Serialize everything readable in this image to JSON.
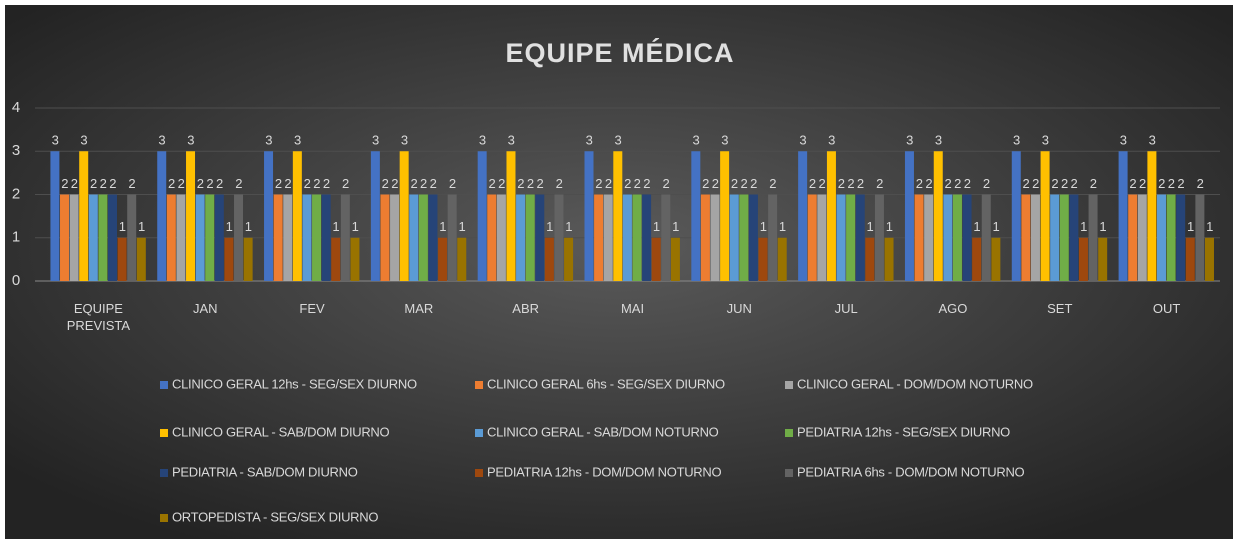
{
  "chart_data": {
    "type": "bar",
    "title": "EQUIPE MÉDICA",
    "categories": [
      "EQUIPE PREVISTA",
      "JAN",
      "FEV",
      "MAR",
      "ABR",
      "MAI",
      "JUN",
      "JUL",
      "AGO",
      "SET",
      "OUT"
    ],
    "series": [
      {
        "name": "CLINICO GERAL  12hs - SEG/SEX DIURNO",
        "color": "#4472c4",
        "values": [
          3,
          3,
          3,
          3,
          3,
          3,
          3,
          3,
          3,
          3,
          3
        ]
      },
      {
        "name": "CLINICO GERAL  6hs - SEG/SEX DIURNO",
        "color": "#ed7d31",
        "values": [
          2,
          2,
          2,
          2,
          2,
          2,
          2,
          2,
          2,
          2,
          2
        ]
      },
      {
        "name": "CLINICO GERAL - DOM/DOM NOTURNO",
        "color": "#a5a5a5",
        "values": [
          2,
          2,
          2,
          2,
          2,
          2,
          2,
          2,
          2,
          2,
          2
        ]
      },
      {
        "name": "CLINICO GERAL - SAB/DOM DIURNO",
        "color": "#ffc000",
        "values": [
          3,
          3,
          3,
          3,
          3,
          3,
          3,
          3,
          3,
          3,
          3
        ]
      },
      {
        "name": "CLINICO GERAL - SAB/DOM NOTURNO",
        "color": "#5b9bd5",
        "values": [
          2,
          2,
          2,
          2,
          2,
          2,
          2,
          2,
          2,
          2,
          2
        ]
      },
      {
        "name": "PEDIATRIA 12hs - SEG/SEX DIURNO",
        "color": "#70ad47",
        "values": [
          2,
          2,
          2,
          2,
          2,
          2,
          2,
          2,
          2,
          2,
          2
        ]
      },
      {
        "name": "PEDIATRIA - SAB/DOM DIURNO",
        "color": "#264478",
        "values": [
          2,
          2,
          2,
          2,
          2,
          2,
          2,
          2,
          2,
          2,
          2
        ]
      },
      {
        "name": "PEDIATRIA 12hs  - DOM/DOM NOTURNO",
        "color": "#9e480e",
        "values": [
          1,
          1,
          1,
          1,
          1,
          1,
          1,
          1,
          1,
          1,
          1
        ]
      },
      {
        "name": "PEDIATRIA 6hs  - DOM/DOM NOTURNO",
        "color": "#636363",
        "values": [
          2,
          2,
          2,
          2,
          2,
          2,
          2,
          2,
          2,
          2,
          2
        ]
      },
      {
        "name": "ORTOPEDISTA - SEG/SEX DIURNO",
        "color": "#997300",
        "values": [
          1,
          1,
          1,
          1,
          1,
          1,
          1,
          1,
          1,
          1,
          1
        ]
      }
    ],
    "ylim": [
      0,
      4
    ],
    "yticks": [
      0,
      1,
      2,
      3,
      4
    ],
    "grid": true,
    "legend": "bottom"
  }
}
